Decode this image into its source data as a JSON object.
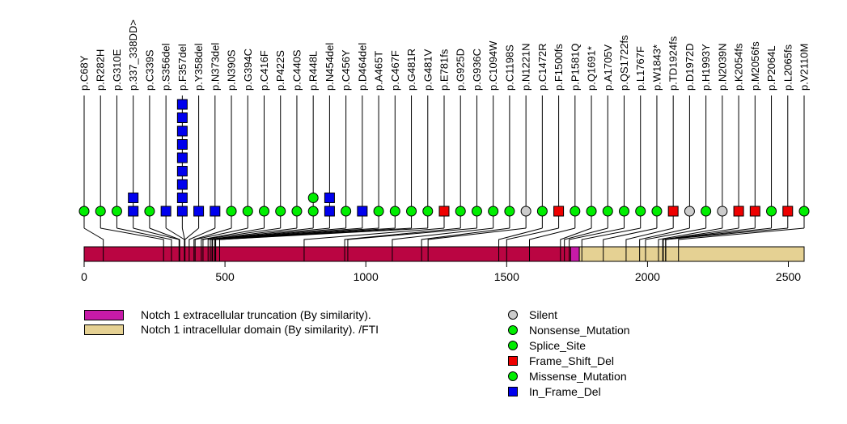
{
  "chart_data": {
    "type": "lollipop",
    "title": "",
    "xlabel": "",
    "ylabel": "",
    "protein_length": 2556,
    "xlim": [
      0,
      2556
    ],
    "x_ticks": [
      0,
      500,
      1000,
      1500,
      2000,
      2500
    ],
    "x_tick_labels": [
      "0",
      "500",
      "1000",
      "1500",
      "2000",
      "2500"
    ],
    "backbone_color": "#BA0542",
    "domains": [
      {
        "name": "Notch 1 extracellular truncation (By similarity).",
        "start": 1727,
        "end": 1758,
        "color": "#C71AA8"
      },
      {
        "name": "Notch 1 intracellular domain (By similarity). /FTI",
        "start": 1758,
        "end": 2556,
        "color": "#E5D193"
      }
    ],
    "mutation_types": [
      {
        "name": "Silent",
        "shape": "circle",
        "color": "#CCCCCC"
      },
      {
        "name": "Nonsense_Mutation",
        "shape": "circle",
        "color": "#00EE00"
      },
      {
        "name": "Splice_Site",
        "shape": "circle",
        "color": "#00EE00"
      },
      {
        "name": "Frame_Shift_Del",
        "shape": "square",
        "color": "#EE0000"
      },
      {
        "name": "Missense_Mutation",
        "shape": "circle",
        "color": "#00EE00"
      },
      {
        "name": "In_Frame_Del",
        "shape": "square",
        "color": "#0000EE"
      }
    ],
    "mutations": [
      {
        "label": "p.C68Y",
        "position": 68,
        "markers": [
          "Missense_Mutation"
        ]
      },
      {
        "label": "p.R282H",
        "position": 282,
        "markers": [
          "Missense_Mutation"
        ]
      },
      {
        "label": "p.G310E",
        "position": 310,
        "markers": [
          "Missense_Mutation"
        ]
      },
      {
        "label": "p.337_338DD>",
        "position": 337,
        "markers": [
          "In_Frame_Del",
          "In_Frame_Del"
        ]
      },
      {
        "label": "p.C339S",
        "position": 339,
        "markers": [
          "Missense_Mutation"
        ]
      },
      {
        "label": "p.S356del",
        "position": 356,
        "markers": [
          "In_Frame_Del"
        ]
      },
      {
        "label": "p.F357del",
        "position": 357,
        "markers": [
          "In_Frame_Del",
          "In_Frame_Del",
          "In_Frame_Del",
          "In_Frame_Del",
          "In_Frame_Del",
          "In_Frame_Del",
          "In_Frame_Del",
          "In_Frame_Del",
          "In_Frame_Del"
        ]
      },
      {
        "label": "p.Y358del",
        "position": 358,
        "markers": [
          "In_Frame_Del"
        ]
      },
      {
        "label": "p.N373del",
        "position": 373,
        "markers": [
          "In_Frame_Del"
        ]
      },
      {
        "label": "p.N390S",
        "position": 390,
        "markers": [
          "Missense_Mutation"
        ]
      },
      {
        "label": "p.G394C",
        "position": 394,
        "markers": [
          "Missense_Mutation"
        ]
      },
      {
        "label": "p.C416F",
        "position": 416,
        "markers": [
          "Missense_Mutation"
        ]
      },
      {
        "label": "p.P422S",
        "position": 422,
        "markers": [
          "Missense_Mutation"
        ]
      },
      {
        "label": "p.C440S",
        "position": 440,
        "markers": [
          "Missense_Mutation"
        ]
      },
      {
        "label": "p.R448L",
        "position": 448,
        "markers": [
          "Missense_Mutation",
          "Missense_Mutation"
        ]
      },
      {
        "label": "p.N454del",
        "position": 454,
        "markers": [
          "In_Frame_Del",
          "In_Frame_Del"
        ]
      },
      {
        "label": "p.C456Y",
        "position": 456,
        "markers": [
          "Missense_Mutation"
        ]
      },
      {
        "label": "p.D464del",
        "position": 464,
        "markers": [
          "In_Frame_Del"
        ]
      },
      {
        "label": "p.A465T",
        "position": 465,
        "markers": [
          "Missense_Mutation"
        ]
      },
      {
        "label": "p.C467F",
        "position": 467,
        "markers": [
          "Missense_Mutation"
        ]
      },
      {
        "label": "p.G481R",
        "position": 481,
        "markers": [
          "Missense_Mutation"
        ]
      },
      {
        "label": "p.G481V",
        "position": 481,
        "markers": [
          "Missense_Mutation"
        ]
      },
      {
        "label": "p.E781fs",
        "position": 781,
        "markers": [
          "Frame_Shift_Del"
        ]
      },
      {
        "label": "p.G925D",
        "position": 925,
        "markers": [
          "Missense_Mutation"
        ]
      },
      {
        "label": "p.G936C",
        "position": 936,
        "markers": [
          "Missense_Mutation"
        ]
      },
      {
        "label": "p.C1094W",
        "position": 1094,
        "markers": [
          "Missense_Mutation"
        ]
      },
      {
        "label": "p.C1198S",
        "position": 1198,
        "markers": [
          "Missense_Mutation"
        ]
      },
      {
        "label": "p.N1221N",
        "position": 1221,
        "markers": [
          "Silent"
        ]
      },
      {
        "label": "p.C1472R",
        "position": 1472,
        "markers": [
          "Missense_Mutation"
        ]
      },
      {
        "label": "p.F1500fs",
        "position": 1500,
        "markers": [
          "Frame_Shift_Del"
        ]
      },
      {
        "label": "p.P1581Q",
        "position": 1581,
        "markers": [
          "Missense_Mutation"
        ]
      },
      {
        "label": "p.Q1691*",
        "position": 1691,
        "markers": [
          "Nonsense_Mutation"
        ]
      },
      {
        "label": "p.A1705V",
        "position": 1705,
        "markers": [
          "Missense_Mutation"
        ]
      },
      {
        "label": "p.QS1722fs",
        "position": 1722,
        "markers": [
          "Missense_Mutation"
        ]
      },
      {
        "label": "p.L1767F",
        "position": 1767,
        "markers": [
          "Missense_Mutation"
        ]
      },
      {
        "label": "p.W1843*",
        "position": 1843,
        "markers": [
          "Nonsense_Mutation"
        ]
      },
      {
        "label": "p.TD1924fs",
        "position": 1924,
        "markers": [
          "Frame_Shift_Del"
        ]
      },
      {
        "label": "p.D1972D",
        "position": 1972,
        "markers": [
          "Silent"
        ]
      },
      {
        "label": "p.H1993Y",
        "position": 1993,
        "markers": [
          "Missense_Mutation"
        ]
      },
      {
        "label": "p.N2039N",
        "position": 2039,
        "markers": [
          "Silent"
        ]
      },
      {
        "label": "p.K2054fs",
        "position": 2054,
        "markers": [
          "Frame_Shift_Del"
        ]
      },
      {
        "label": "p.M2056fs",
        "position": 2056,
        "markers": [
          "Frame_Shift_Del"
        ]
      },
      {
        "label": "p.P2064L",
        "position": 2064,
        "markers": [
          "Missense_Mutation"
        ]
      },
      {
        "label": "p.L2065fs",
        "position": 2065,
        "markers": [
          "Frame_Shift_Del"
        ]
      },
      {
        "label": "p.V2110M",
        "position": 2110,
        "markers": [
          "Missense_Mutation"
        ]
      }
    ]
  },
  "legend": {
    "domains": [
      {
        "label": "Notch 1 extracellular truncation (By similarity).",
        "color": "#C71AA8"
      },
      {
        "label": "Notch 1 intracellular domain (By similarity). /FTI",
        "color": "#E5D193"
      }
    ],
    "mutation_types": [
      {
        "label": "Silent",
        "shape": "circle",
        "color": "#CCCCCC"
      },
      {
        "label": "Nonsense_Mutation",
        "shape": "circle",
        "color": "#00EE00"
      },
      {
        "label": "Splice_Site",
        "shape": "circle",
        "color": "#00EE00"
      },
      {
        "label": "Frame_Shift_Del",
        "shape": "square",
        "color": "#EE0000"
      },
      {
        "label": "Missense_Mutation",
        "shape": "circle",
        "color": "#00EE00"
      },
      {
        "label": "In_Frame_Del",
        "shape": "square",
        "color": "#0000EE"
      }
    ]
  }
}
